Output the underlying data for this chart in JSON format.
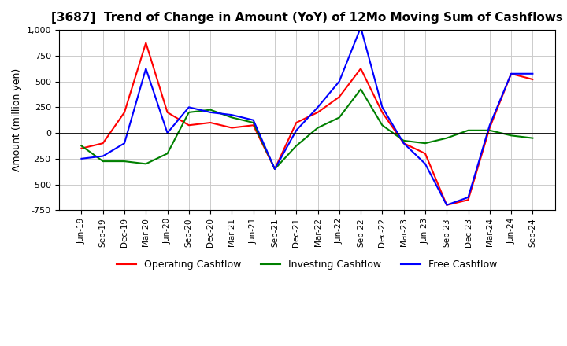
{
  "title": "[3687]  Trend of Change in Amount (YoY) of 12Mo Moving Sum of Cashflows",
  "ylabel": "Amount (million yen)",
  "x_labels": [
    "Jun-19",
    "Sep-19",
    "Dec-19",
    "Mar-20",
    "Jun-20",
    "Sep-20",
    "Dec-20",
    "Mar-21",
    "Jun-21",
    "Sep-21",
    "Dec-21",
    "Mar-22",
    "Jun-22",
    "Sep-22",
    "Dec-22",
    "Mar-23",
    "Jun-23",
    "Sep-23",
    "Dec-23",
    "Mar-24",
    "Jun-24",
    "Sep-24"
  ],
  "operating": [
    -150,
    -100,
    200,
    875,
    200,
    75,
    100,
    50,
    75,
    -350,
    100,
    200,
    350,
    625,
    200,
    -100,
    -200,
    -700,
    -650,
    50,
    575,
    520
  ],
  "investing": [
    -125,
    -275,
    -275,
    -300,
    -200,
    200,
    225,
    150,
    100,
    -350,
    -125,
    50,
    150,
    425,
    75,
    -75,
    -100,
    -50,
    25,
    25,
    -25,
    -50
  ],
  "free": [
    -250,
    -225,
    -100,
    625,
    0,
    250,
    200,
    175,
    125,
    -350,
    25,
    250,
    500,
    1025,
    250,
    -100,
    -300,
    -700,
    -625,
    75,
    575,
    575
  ],
  "operating_color": "#ff0000",
  "investing_color": "#008000",
  "free_color": "#0000ff",
  "ylim": [
    -750,
    1000
  ],
  "yticks": [
    -750,
    -500,
    -250,
    0,
    250,
    500,
    750,
    1000
  ],
  "background_color": "#ffffff",
  "grid_color": "#cccccc"
}
